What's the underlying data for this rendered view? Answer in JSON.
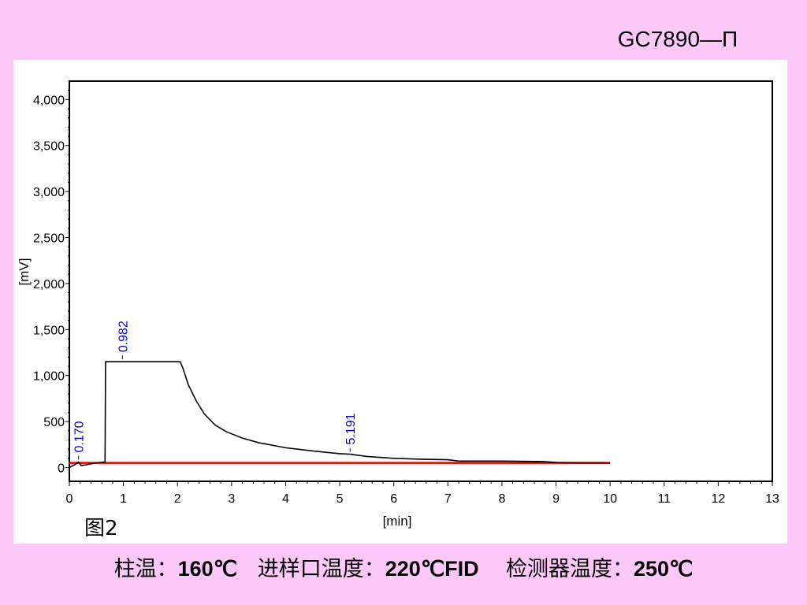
{
  "header": {
    "model": "GC7890—Π"
  },
  "figure_label": "图2",
  "conditions": {
    "col_label": "柱温：",
    "col_value": "160℃",
    "inj_label": "进样口温度：",
    "inj_value": "220℃FID",
    "det_label": "检测器温度：",
    "det_value": "250℃"
  },
  "colors": {
    "background": "#fbc8f7",
    "trace": "#000000",
    "baseline": "#e00000",
    "peak_label": "#0000cc"
  },
  "chart_data": {
    "type": "line",
    "title": "",
    "xlabel": "[min]",
    "ylabel": "[mV]",
    "xlim": [
      0,
      13
    ],
    "ylim": [
      -150,
      4200
    ],
    "xticks": [
      "0",
      "1",
      "2",
      "3",
      "4",
      "5",
      "6",
      "7",
      "8",
      "9",
      "10",
      "11",
      "12",
      "13"
    ],
    "yticks": [
      "0",
      "500",
      "1,000",
      "1,500",
      "2,000",
      "2,500",
      "3,000",
      "3,500",
      "4,000"
    ],
    "series": [
      {
        "x": [
          0,
          0.1,
          0.17,
          0.22,
          0.5,
          0.66,
          0.67,
          0.982,
          2.05,
          2.1,
          2.2,
          2.35,
          2.5,
          2.7,
          2.9,
          3.2,
          3.5,
          4.0,
          4.5,
          5.0,
          5.191,
          5.5,
          6.0,
          6.5,
          7.0,
          7.2,
          8.0,
          8.77,
          9.0,
          9.5,
          10.0
        ],
        "y": [
          0,
          30,
          60,
          20,
          50,
          60,
          1150,
          1150,
          1150,
          1080,
          900,
          720,
          580,
          460,
          390,
          320,
          270,
          215,
          180,
          150,
          145,
          120,
          100,
          90,
          85,
          70,
          70,
          65,
          55,
          50,
          50
        ]
      },
      {
        "x": [
          0,
          10.0
        ],
        "y": [
          50,
          50
        ]
      }
    ],
    "peaks": [
      {
        "label": "0.170",
        "x": 0.17,
        "y": 60
      },
      {
        "label": "0.982",
        "x": 0.982,
        "y": 1150
      },
      {
        "label": "5.191",
        "x": 5.191,
        "y": 145
      }
    ]
  }
}
